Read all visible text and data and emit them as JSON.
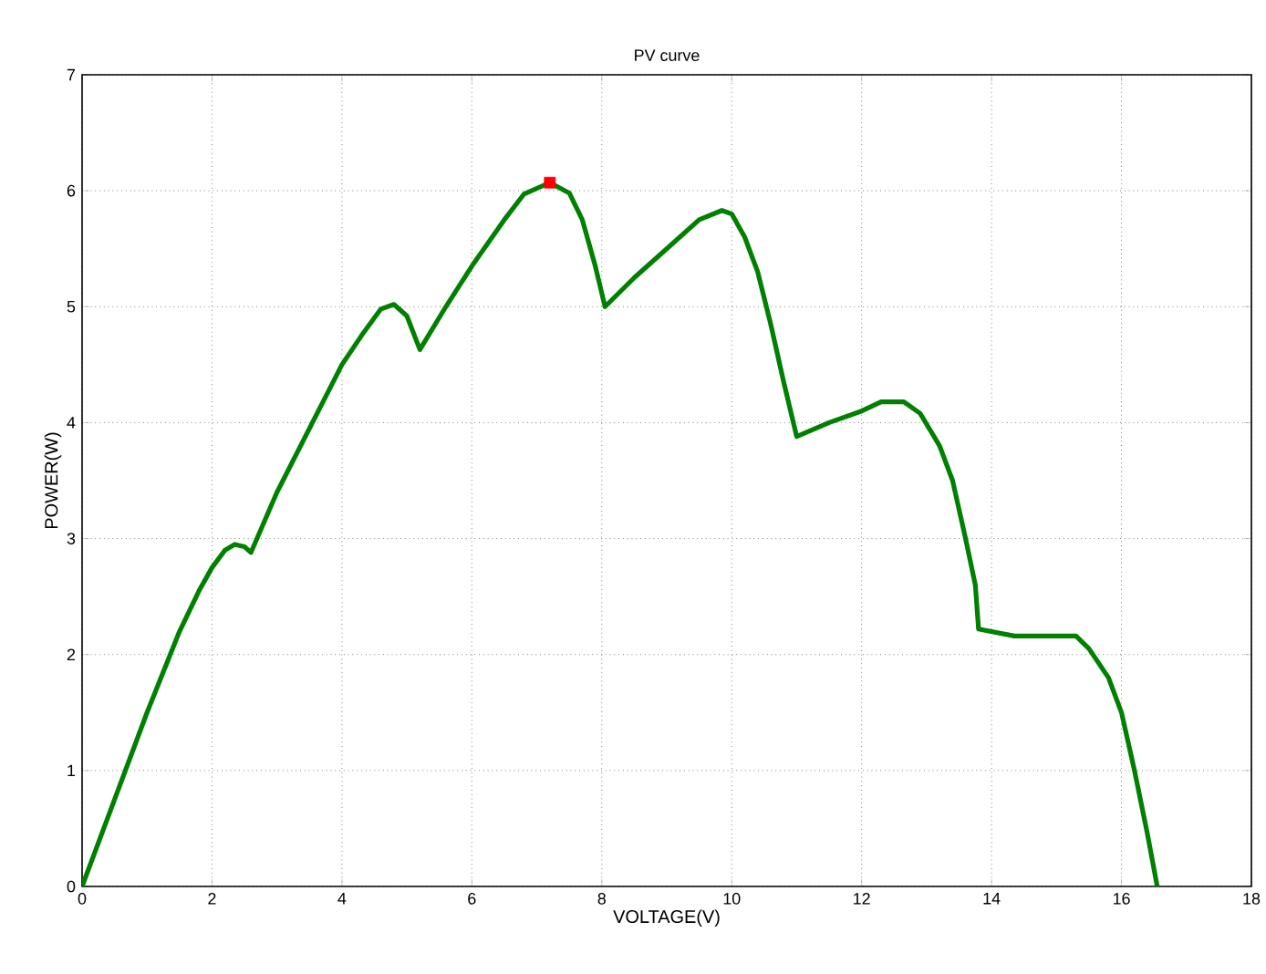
{
  "chart_data": {
    "type": "line",
    "title": "PV curve",
    "xlabel": "VOLTAGE(V)",
    "ylabel": "POWER(W)",
    "xlim": [
      0,
      18
    ],
    "ylim": [
      0,
      7
    ],
    "xticks": [
      0,
      2,
      4,
      6,
      8,
      10,
      12,
      14,
      16,
      18
    ],
    "yticks": [
      0,
      1,
      2,
      3,
      4,
      5,
      6,
      7
    ],
    "grid": true,
    "series": [
      {
        "color": "#008000",
        "marker": "none",
        "line_style": "solid",
        "x": [
          0,
          0.5,
          1,
          1.5,
          1.8,
          2.0,
          2.2,
          2.35,
          2.5,
          2.6,
          3,
          3.5,
          4,
          4.3,
          4.6,
          4.8,
          5.0,
          5.2,
          5.6,
          6,
          6.5,
          6.8,
          7.2,
          7.5,
          7.7,
          7.9,
          8.05,
          8.5,
          9,
          9.5,
          9.85,
          10.0,
          10.2,
          10.4,
          10.6,
          10.8,
          11.0,
          11.5,
          12,
          12.3,
          12.65,
          12.9,
          13.2,
          13.4,
          13.6,
          13.75,
          13.8,
          14.35,
          15.3,
          15.5,
          15.8,
          16.0,
          16.2,
          16.4,
          16.55
        ],
        "values": [
          0,
          0.75,
          1.5,
          2.2,
          2.55,
          2.75,
          2.9,
          2.95,
          2.93,
          2.88,
          3.4,
          3.95,
          4.5,
          4.75,
          4.98,
          5.02,
          4.92,
          4.63,
          5.0,
          5.35,
          5.75,
          5.97,
          6.07,
          5.98,
          5.75,
          5.35,
          5.0,
          5.25,
          5.5,
          5.75,
          5.83,
          5.8,
          5.6,
          5.3,
          4.85,
          4.35,
          3.88,
          4.0,
          4.1,
          4.18,
          4.18,
          4.08,
          3.8,
          3.5,
          3.0,
          2.6,
          2.22,
          2.16,
          2.16,
          2.05,
          1.8,
          1.5,
          1.0,
          0.45,
          0
        ]
      },
      {
        "type": "scatter",
        "color": "#ff0000",
        "marker": "square",
        "x": [
          7.2
        ],
        "values": [
          6.07
        ]
      }
    ]
  }
}
